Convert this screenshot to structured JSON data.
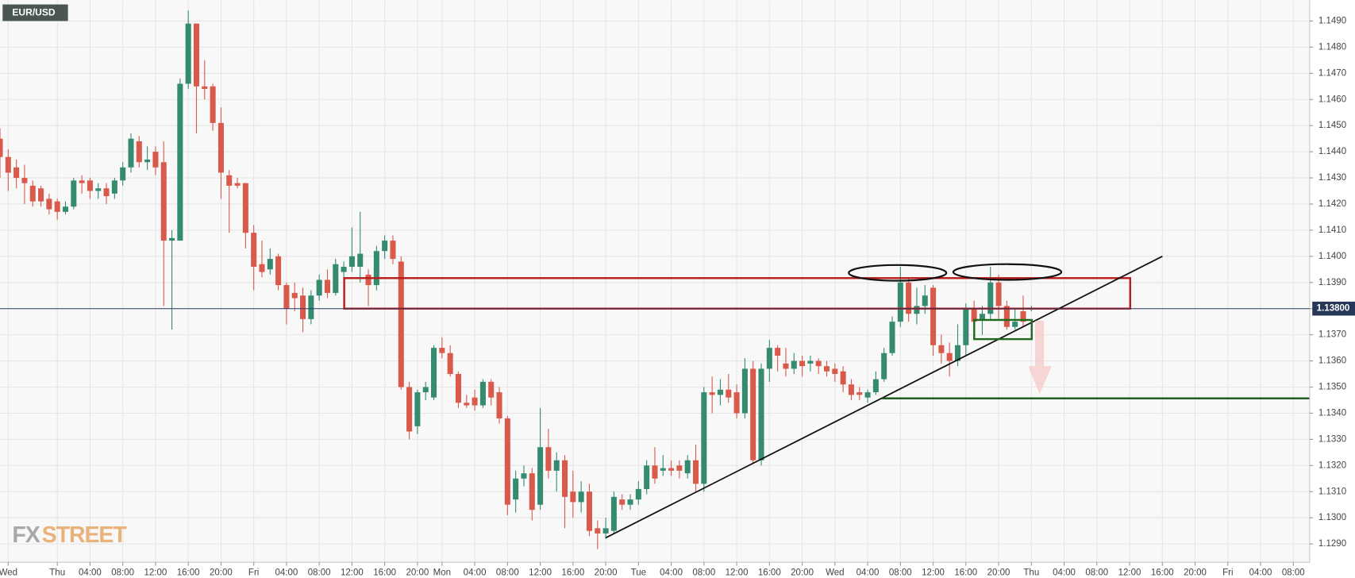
{
  "chart_data": {
    "type": "candlestick",
    "title": "EUR/USD",
    "watermark": [
      "FX",
      "STREET"
    ],
    "up_color": "#358b6f",
    "down_color": "#d9594b",
    "grid": true,
    "last_price": {
      "value": 1.138,
      "label": "1.13800"
    },
    "xlim": [
      -7,
      153
    ],
    "ylim": [
      1.1283,
      1.1498
    ],
    "xticks": [
      {
        "value": -6,
        "label": "Wed"
      },
      {
        "value": 0,
        "label": "Thu"
      },
      {
        "value": 4,
        "label": "04:00"
      },
      {
        "value": 8,
        "label": "08:00"
      },
      {
        "value": 12,
        "label": "12:00"
      },
      {
        "value": 16,
        "label": "16:00"
      },
      {
        "value": 20,
        "label": "20:00"
      },
      {
        "value": 24,
        "label": "Fri"
      },
      {
        "value": 28,
        "label": "04:00"
      },
      {
        "value": 32,
        "label": "08:00"
      },
      {
        "value": 36,
        "label": "12:00"
      },
      {
        "value": 40,
        "label": "16:00"
      },
      {
        "value": 44,
        "label": "20:00"
      },
      {
        "value": 47,
        "label": "Mon"
      },
      {
        "value": 51,
        "label": "04:00"
      },
      {
        "value": 55,
        "label": "08:00"
      },
      {
        "value": 59,
        "label": "12:00"
      },
      {
        "value": 63,
        "label": "16:00"
      },
      {
        "value": 67,
        "label": "20:00"
      },
      {
        "value": 71,
        "label": "Tue"
      },
      {
        "value": 75,
        "label": "04:00"
      },
      {
        "value": 79,
        "label": "08:00"
      },
      {
        "value": 83,
        "label": "12:00"
      },
      {
        "value": 87,
        "label": "16:00"
      },
      {
        "value": 91,
        "label": "20:00"
      },
      {
        "value": 95,
        "label": "Wed"
      },
      {
        "value": 99,
        "label": "04:00"
      },
      {
        "value": 103,
        "label": "08:00"
      },
      {
        "value": 107,
        "label": "12:00"
      },
      {
        "value": 111,
        "label": "16:00"
      },
      {
        "value": 115,
        "label": "20:00"
      },
      {
        "value": 119,
        "label": "Thu"
      },
      {
        "value": 123,
        "label": "04:00"
      },
      {
        "value": 127,
        "label": "08:00"
      },
      {
        "value": 131,
        "label": "12:00"
      },
      {
        "value": 135,
        "label": "16:00"
      },
      {
        "value": 139,
        "label": "20:00"
      },
      {
        "value": 143,
        "label": "Fri"
      },
      {
        "value": 147,
        "label": "04:00"
      },
      {
        "value": 151,
        "label": "08:00"
      }
    ],
    "yticks": [
      {
        "value": 1.129,
        "label": "1.1290"
      },
      {
        "value": 1.13,
        "label": "1.1300"
      },
      {
        "value": 1.131,
        "label": "1.1310"
      },
      {
        "value": 1.132,
        "label": "1.1320"
      },
      {
        "value": 1.133,
        "label": "1.1330"
      },
      {
        "value": 1.134,
        "label": "1.1340"
      },
      {
        "value": 1.135,
        "label": "1.1350"
      },
      {
        "value": 1.136,
        "label": "1.1360"
      },
      {
        "value": 1.137,
        "label": "1.1370"
      },
      {
        "value": 1.138,
        "label": "1.1380"
      },
      {
        "value": 1.139,
        "label": "1.1390"
      },
      {
        "value": 1.14,
        "label": "1.1400"
      },
      {
        "value": 1.141,
        "label": "1.1410"
      },
      {
        "value": 1.142,
        "label": "1.1420"
      },
      {
        "value": 1.143,
        "label": "1.1430"
      },
      {
        "value": 1.144,
        "label": "1.1440"
      },
      {
        "value": 1.145,
        "label": "1.1450"
      },
      {
        "value": 1.146,
        "label": "1.1460"
      },
      {
        "value": 1.147,
        "label": "1.1470"
      },
      {
        "value": 1.148,
        "label": "1.1480"
      },
      {
        "value": 1.149,
        "label": "1.1490"
      }
    ],
    "x": [
      -7,
      -6,
      -5,
      -4,
      -3,
      -2,
      -1,
      0,
      1,
      2,
      3,
      4,
      5,
      6,
      7,
      8,
      9,
      10,
      11,
      12,
      13,
      14,
      15,
      16,
      17,
      18,
      19,
      20,
      21,
      22,
      23,
      24,
      25,
      26,
      27,
      28,
      29,
      30,
      31,
      32,
      33,
      34,
      35,
      36,
      37,
      38,
      39,
      40,
      41,
      42,
      43,
      44,
      45,
      46,
      47,
      48,
      49,
      50,
      51,
      52,
      53,
      54,
      55,
      56,
      57,
      58,
      59,
      60,
      61,
      62,
      63,
      64,
      65,
      66,
      67,
      68,
      69,
      70,
      71,
      72,
      73,
      74,
      75,
      76,
      77,
      78,
      79,
      80,
      81,
      82,
      83,
      84,
      85,
      86,
      87,
      88,
      89,
      90,
      91,
      92,
      93,
      94,
      95,
      96,
      97,
      98,
      99,
      100,
      101,
      102,
      103,
      104,
      105,
      106,
      107,
      108,
      109,
      110,
      111,
      112,
      113,
      114,
      115,
      116,
      117,
      118,
      119
    ],
    "open": [
      1.1445,
      1.1438,
      1.1434,
      1.143,
      1.1427,
      1.1426,
      1.1422,
      1.1421,
      1.1417,
      1.1419,
      1.1429,
      1.1429,
      1.1425,
      1.1426,
      1.1424,
      1.1429,
      1.1434,
      1.1444,
      1.1436,
      1.144,
      1.1436,
      1.1406,
      1.1406,
      1.1466,
      1.1489,
      1.1465,
      1.1465,
      1.1451,
      1.1431,
      1.1428,
      1.1428,
      1.1409,
      1.1397,
      1.1395,
      1.14,
      1.1389,
      1.1386,
      1.1385,
      1.1376,
      1.1385,
      1.1391,
      1.1386,
      1.1394,
      1.1396,
      1.1396,
      1.1393,
      1.1389,
      1.1402,
      1.1406,
      1.1398,
      1.135,
      1.1335,
      1.1348,
      1.1346,
      1.1365,
      1.1363,
      1.1355,
      1.1344,
      1.1346,
      1.1343,
      1.1352,
      1.1348,
      1.1338,
      1.1307,
      1.1315,
      1.1317,
      1.1305,
      1.1327,
      1.1318,
      1.1322,
      1.131,
      1.1306,
      1.131,
      1.1296,
      1.1294,
      1.1295,
      1.1307,
      1.1305,
      1.1307,
      1.1311,
      1.132,
      1.1318,
      1.1319,
      1.132,
      1.1317,
      1.1322,
      1.1313,
      1.1348,
      1.1347,
      1.1349,
      1.1348,
      1.134,
      1.1357,
      1.1322,
      1.1357,
      1.1365,
      1.1359,
      1.1357,
      1.136,
      1.1359,
      1.136,
      1.1358,
      1.1357,
      1.1356,
      1.1351,
      1.1348,
      1.1346,
      1.1348,
      1.1353,
      1.1363,
      1.1375,
      1.139,
      1.1378,
      1.1381,
      1.1388,
      1.1366,
      1.1363,
      1.136,
      1.1366,
      1.138,
      1.1376,
      1.1378,
      1.139,
      1.1381,
      1.1373,
      1.1379,
      1.138
    ],
    "high": [
      1.1449,
      1.1441,
      1.1437,
      1.1435,
      1.1429,
      1.1427,
      1.1424,
      1.1422,
      1.1421,
      1.143,
      1.1431,
      1.143,
      1.1428,
      1.1428,
      1.143,
      1.1436,
      1.1447,
      1.1446,
      1.1442,
      1.1442,
      1.1444,
      1.141,
      1.1468,
      1.1494,
      1.1489,
      1.1475,
      1.1466,
      1.1457,
      1.1433,
      1.143,
      1.1428,
      1.1412,
      1.1406,
      1.1403,
      1.1401,
      1.139,
      1.139,
      1.1388,
      1.1387,
      1.1393,
      1.1395,
      1.1399,
      1.1398,
      1.1411,
      1.1417,
      1.1395,
      1.1404,
      1.1408,
      1.1408,
      1.14,
      1.1352,
      1.1349,
      1.1352,
      1.1366,
      1.1369,
      1.1366,
      1.1356,
      1.1347,
      1.1349,
      1.1353,
      1.1353,
      1.135,
      1.1339,
      1.1318,
      1.132,
      1.1319,
      1.1342,
      1.1334,
      1.1325,
      1.1324,
      1.1318,
      1.1314,
      1.1313,
      1.1299,
      1.13,
      1.131,
      1.1309,
      1.1309,
      1.1314,
      1.1322,
      1.1327,
      1.1324,
      1.1322,
      1.1322,
      1.1324,
      1.1328,
      1.135,
      1.1354,
      1.1353,
      1.1355,
      1.1351,
      1.1361,
      1.136,
      1.1359,
      1.1368,
      1.1366,
      1.1365,
      1.1363,
      1.1362,
      1.1362,
      1.1361,
      1.136,
      1.1359,
      1.1358,
      1.1353,
      1.135,
      1.1349,
      1.1356,
      1.1365,
      1.1377,
      1.1396,
      1.1392,
      1.1388,
      1.1389,
      1.1389,
      1.137,
      1.1367,
      1.1374,
      1.1382,
      1.1383,
      1.1381,
      1.1396,
      1.1393,
      1.1383,
      1.138,
      1.1385,
      1.1381
    ],
    "low": [
      1.143,
      1.1425,
      1.1426,
      1.142,
      1.1419,
      1.1419,
      1.1416,
      1.1414,
      1.1416,
      1.1418,
      1.1424,
      1.1422,
      1.1422,
      1.142,
      1.1422,
      1.1427,
      1.1432,
      1.1434,
      1.1433,
      1.1431,
      1.1381,
      1.1372,
      1.1406,
      1.1464,
      1.1447,
      1.146,
      1.1448,
      1.1422,
      1.1409,
      1.1426,
      1.1403,
      1.1387,
      1.1392,
      1.1393,
      1.1387,
      1.1374,
      1.1379,
      1.1371,
      1.1374,
      1.1383,
      1.1384,
      1.1385,
      1.1392,
      1.1394,
      1.139,
      1.1381,
      1.1387,
      1.1399,
      1.1397,
      1.1349,
      1.133,
      1.1332,
      1.1345,
      1.1345,
      1.1361,
      1.1354,
      1.1342,
      1.1342,
      1.1341,
      1.1342,
      1.1343,
      1.1336,
      1.1301,
      1.1302,
      1.1312,
      1.1299,
      1.1303,
      1.1315,
      1.131,
      1.1296,
      1.13,
      1.1302,
      1.1293,
      1.1288,
      1.1292,
      1.1294,
      1.1303,
      1.1303,
      1.1305,
      1.1309,
      1.1313,
      1.1316,
      1.1316,
      1.1315,
      1.1315,
      1.131,
      1.131,
      1.134,
      1.1343,
      1.1344,
      1.1338,
      1.1338,
      1.1321,
      1.132,
      1.1352,
      1.1356,
      1.1354,
      1.1355,
      1.1354,
      1.1356,
      1.1355,
      1.1354,
      1.1352,
      1.1348,
      1.1345,
      1.1345,
      1.1344,
      1.1347,
      1.1352,
      1.1362,
      1.1373,
      1.1375,
      1.1374,
      1.1378,
      1.1362,
      1.1359,
      1.1354,
      1.1358,
      1.1362,
      1.137,
      1.137,
      1.1376,
      1.1376,
      1.1372,
      1.1372,
      1.1373,
      1.1379
    ],
    "close": [
      1.1438,
      1.1432,
      1.143,
      1.1428,
      1.1421,
      1.1421,
      1.1418,
      1.1417,
      1.1419,
      1.1429,
      1.1428,
      1.1425,
      1.1426,
      1.1423,
      1.1429,
      1.1434,
      1.1445,
      1.1436,
      1.1437,
      1.1434,
      1.1406,
      1.1407,
      1.1466,
      1.1489,
      1.1465,
      1.1464,
      1.1451,
      1.1432,
      1.1427,
      1.1427,
      1.1409,
      1.1396,
      1.1394,
      1.1399,
      1.1389,
      1.138,
      1.1384,
      1.1376,
      1.1385,
      1.1391,
      1.1386,
      1.1397,
      1.1396,
      1.14,
      1.1401,
      1.1389,
      1.1402,
      1.1406,
      1.1399,
      1.135,
      1.1333,
      1.1348,
      1.135,
      1.1365,
      1.1363,
      1.1355,
      1.1344,
      1.1343,
      1.1343,
      1.1352,
      1.1346,
      1.1338,
      1.1305,
      1.1315,
      1.1317,
      1.1303,
      1.1327,
      1.1318,
      1.1322,
      1.1308,
      1.1306,
      1.131,
      1.1295,
      1.1294,
      1.1296,
      1.1308,
      1.1305,
      1.1307,
      1.1311,
      1.132,
      1.1315,
      1.1319,
      1.1318,
      1.1318,
      1.1322,
      1.1313,
      1.1348,
      1.1347,
      1.1349,
      1.1346,
      1.134,
      1.1357,
      1.1322,
      1.1357,
      1.1365,
      1.1362,
      1.1357,
      1.136,
      1.1358,
      1.136,
      1.1358,
      1.1356,
      1.1355,
      1.1351,
      1.1347,
      1.1347,
      1.1348,
      1.1353,
      1.1363,
      1.1375,
      1.139,
      1.1378,
      1.1381,
      1.1385,
      1.1366,
      1.1363,
      1.136,
      1.1366,
      1.138,
      1.1375,
      1.1378,
      1.139,
      1.1381,
      1.1373,
      1.1375,
      1.1375,
      1.138
    ]
  }
}
